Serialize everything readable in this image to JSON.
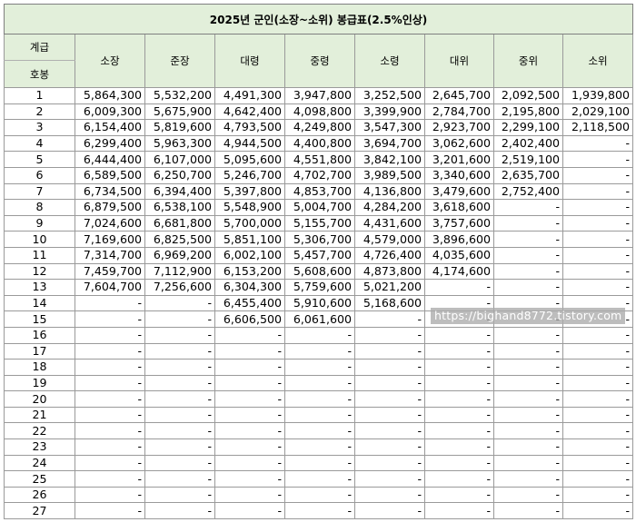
{
  "title": "2025년 군인(소장~소위) 봉급표(2.5%인상)",
  "header": {
    "grade_label": "계급",
    "step_label": "호봉",
    "ranks": [
      "소장",
      "준장",
      "대령",
      "중령",
      "소령",
      "대위",
      "중위",
      "소위"
    ]
  },
  "rows": [
    {
      "step": "1",
      "values": [
        "5,864,300",
        "5,532,200",
        "4,491,300",
        "3,947,800",
        "3,252,500",
        "2,645,700",
        "2,092,500",
        "1,939,800"
      ]
    },
    {
      "step": "2",
      "values": [
        "6,009,300",
        "5,675,900",
        "4,642,400",
        "4,098,800",
        "3,399,900",
        "2,784,700",
        "2,195,800",
        "2,029,100"
      ]
    },
    {
      "step": "3",
      "values": [
        "6,154,400",
        "5,819,600",
        "4,793,500",
        "4,249,800",
        "3,547,300",
        "2,923,700",
        "2,299,100",
        "2,118,500"
      ]
    },
    {
      "step": "4",
      "values": [
        "6,299,400",
        "5,963,300",
        "4,944,500",
        "4,400,800",
        "3,694,700",
        "3,062,600",
        "2,402,400",
        "-"
      ]
    },
    {
      "step": "5",
      "values": [
        "6,444,400",
        "6,107,000",
        "5,095,600",
        "4,551,800",
        "3,842,100",
        "3,201,600",
        "2,519,100",
        "-"
      ]
    },
    {
      "step": "6",
      "values": [
        "6,589,500",
        "6,250,700",
        "5,246,700",
        "4,702,700",
        "3,989,500",
        "3,340,600",
        "2,635,700",
        "-"
      ]
    },
    {
      "step": "7",
      "values": [
        "6,734,500",
        "6,394,400",
        "5,397,800",
        "4,853,700",
        "4,136,800",
        "3,479,600",
        "2,752,400",
        "-"
      ]
    },
    {
      "step": "8",
      "values": [
        "6,879,500",
        "6,538,100",
        "5,548,900",
        "5,004,700",
        "4,284,200",
        "3,618,600",
        "-",
        "-"
      ]
    },
    {
      "step": "9",
      "values": [
        "7,024,600",
        "6,681,800",
        "5,700,000",
        "5,155,700",
        "4,431,600",
        "3,757,600",
        "-",
        "-"
      ]
    },
    {
      "step": "10",
      "values": [
        "7,169,600",
        "6,825,500",
        "5,851,100",
        "5,306,700",
        "4,579,000",
        "3,896,600",
        "-",
        "-"
      ]
    },
    {
      "step": "11",
      "values": [
        "7,314,700",
        "6,969,200",
        "6,002,100",
        "5,457,700",
        "4,726,400",
        "4,035,600",
        "-",
        "-"
      ]
    },
    {
      "step": "12",
      "values": [
        "7,459,700",
        "7,112,900",
        "6,153,200",
        "5,608,600",
        "4,873,800",
        "4,174,600",
        "-",
        "-"
      ]
    },
    {
      "step": "13",
      "values": [
        "7,604,700",
        "7,256,600",
        "6,304,300",
        "5,759,600",
        "5,021,200",
        "-",
        "-",
        "-"
      ]
    },
    {
      "step": "14",
      "values": [
        "-",
        "-",
        "6,455,400",
        "5,910,600",
        "5,168,600",
        "-",
        "-",
        "-"
      ]
    },
    {
      "step": "15",
      "values": [
        "-",
        "-",
        "6,606,500",
        "6,061,600",
        "-",
        "-",
        "-",
        "-"
      ]
    },
    {
      "step": "16",
      "values": [
        "-",
        "-",
        "-",
        "-",
        "-",
        "-",
        "-",
        "-"
      ]
    },
    {
      "step": "17",
      "values": [
        "-",
        "-",
        "-",
        "-",
        "-",
        "-",
        "-",
        "-"
      ]
    },
    {
      "step": "18",
      "values": [
        "-",
        "-",
        "-",
        "-",
        "-",
        "-",
        "-",
        "-"
      ]
    },
    {
      "step": "19",
      "values": [
        "-",
        "-",
        "-",
        "-",
        "-",
        "-",
        "-",
        "-"
      ]
    },
    {
      "step": "20",
      "values": [
        "-",
        "-",
        "-",
        "-",
        "-",
        "-",
        "-",
        "-"
      ]
    },
    {
      "step": "21",
      "values": [
        "-",
        "-",
        "-",
        "-",
        "-",
        "-",
        "-",
        "-"
      ]
    },
    {
      "step": "22",
      "values": [
        "-",
        "-",
        "-",
        "-",
        "-",
        "-",
        "-",
        "-"
      ]
    },
    {
      "step": "23",
      "values": [
        "-",
        "-",
        "-",
        "-",
        "-",
        "-",
        "-",
        "-"
      ]
    },
    {
      "step": "24",
      "values": [
        "-",
        "-",
        "-",
        "-",
        "-",
        "-",
        "-",
        "-"
      ]
    },
    {
      "step": "25",
      "values": [
        "-",
        "-",
        "-",
        "-",
        "-",
        "-",
        "-",
        "-"
      ]
    },
    {
      "step": "26",
      "values": [
        "-",
        "-",
        "-",
        "-",
        "-",
        "-",
        "-",
        "-"
      ]
    },
    {
      "step": "27",
      "values": [
        "-",
        "-",
        "-",
        "-",
        "-",
        "-",
        "-",
        "-"
      ]
    }
  ],
  "watermark": "https://bighand8772.tistory.com",
  "colors": {
    "header_bg": "#e2efda",
    "grid": "#9a9a9a",
    "watermark_bg": "#aaaaaa"
  }
}
